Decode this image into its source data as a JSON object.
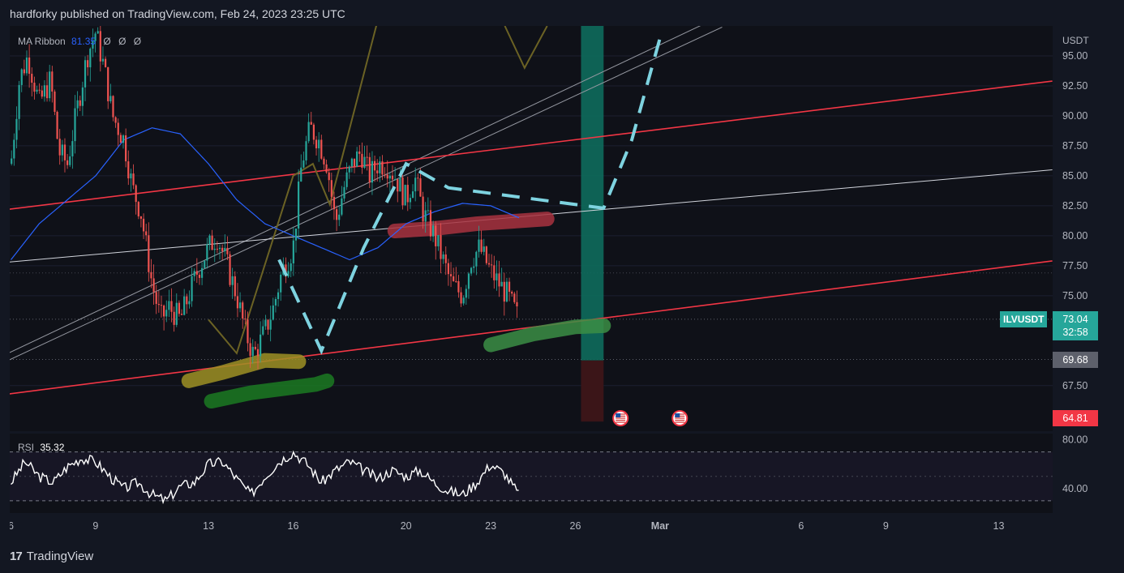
{
  "header": {
    "text": "hardforky published on TradingView.com, Feb 24, 2023 23:25 UTC"
  },
  "footer": {
    "brand": "TradingView",
    "logo": "17"
  },
  "indicators": {
    "ma_ribbon": {
      "name": "MA Ribbon",
      "value": "81.35",
      "extras": [
        "Ø",
        "Ø",
        "Ø"
      ]
    },
    "rsi": {
      "name": "RSI",
      "value": "35.32"
    }
  },
  "price_axis": {
    "currency": "USDT",
    "ticks": [
      "95.00",
      "92.50",
      "90.00",
      "87.50",
      "85.00",
      "82.50",
      "80.00",
      "77.50",
      "75.00",
      "67.50"
    ],
    "tick_values": [
      95,
      92.5,
      90,
      87.5,
      85,
      82.5,
      80,
      77.5,
      75,
      67.5
    ]
  },
  "price_labels": {
    "symbol": "ILVUSDT",
    "current": "73.04",
    "countdown": "32:58",
    "level_gray": "69.68",
    "level_red": "64.81"
  },
  "rsi_axis": {
    "ticks": [
      "80.00",
      "40.00"
    ],
    "tick_values": [
      80,
      40
    ]
  },
  "time_axis": {
    "labels": [
      "6",
      "9",
      "13",
      "16",
      "20",
      "23",
      "26",
      "Mar",
      "6",
      "9",
      "13"
    ],
    "day_index": [
      0,
      3,
      7,
      10,
      14,
      17,
      20,
      23,
      28,
      31,
      35
    ]
  },
  "colors": {
    "background": "#131722",
    "candle_up": "#26a69a",
    "candle_down": "#ef5350",
    "ma": "#2962ff",
    "trend_red": "#f23645",
    "rsi_line": "#ffffff",
    "dash": "#7ed3e0",
    "green_box": "#0e6b5c"
  },
  "chart_data": {
    "type": "candlestick",
    "symbol": "ILVUSDT",
    "x_unit": "day (Feb 6 = 0)",
    "ylim": [
      63.7,
      97.5
    ],
    "close_path": [
      [
        0,
        86
      ],
      [
        0.3,
        93
      ],
      [
        0.6,
        95
      ],
      [
        1,
        91
      ],
      [
        1.4,
        93
      ],
      [
        1.7,
        87
      ],
      [
        2,
        86
      ],
      [
        2.3,
        90
      ],
      [
        2.7,
        95
      ],
      [
        3,
        97
      ],
      [
        3.3,
        94
      ],
      [
        3.6,
        90
      ],
      [
        4,
        88
      ],
      [
        4.3,
        84
      ],
      [
        4.6,
        82
      ],
      [
        5,
        76
      ],
      [
        5.3,
        73
      ],
      [
        5.6,
        74
      ],
      [
        6,
        73
      ],
      [
        6.3,
        75
      ],
      [
        6.6,
        77
      ],
      [
        7,
        79
      ],
      [
        7.3,
        80
      ],
      [
        7.6,
        78
      ],
      [
        8,
        75
      ],
      [
        8.3,
        72
      ],
      [
        8.6,
        70
      ],
      [
        9,
        72
      ],
      [
        9.3,
        74
      ],
      [
        9.6,
        77
      ],
      [
        10,
        79
      ],
      [
        10.3,
        86
      ],
      [
        10.6,
        89
      ],
      [
        10.9,
        88
      ],
      [
        11.2,
        86
      ],
      [
        11.5,
        81
      ],
      [
        11.8,
        84
      ],
      [
        12.1,
        86
      ],
      [
        12.4,
        87
      ],
      [
        12.7,
        85
      ],
      [
        13,
        86
      ],
      [
        13.3,
        86
      ],
      [
        13.6,
        85
      ],
      [
        14,
        83
      ],
      [
        14.3,
        85
      ],
      [
        14.6,
        82
      ],
      [
        15,
        80
      ],
      [
        15.3,
        78
      ],
      [
        15.6,
        76
      ],
      [
        16,
        75
      ],
      [
        16.3,
        78
      ],
      [
        16.6,
        79
      ],
      [
        17,
        77
      ],
      [
        17.3,
        76
      ],
      [
        17.6,
        75
      ],
      [
        18,
        73
      ]
    ],
    "ma_ribbon": {
      "value": 81.35,
      "path": [
        [
          0,
          78
        ],
        [
          1,
          81
        ],
        [
          2,
          83
        ],
        [
          3,
          85
        ],
        [
          4,
          88
        ],
        [
          5,
          89
        ],
        [
          6,
          88.5
        ],
        [
          7,
          86
        ],
        [
          8,
          83
        ],
        [
          9,
          81
        ],
        [
          10,
          80
        ],
        [
          11,
          79
        ],
        [
          12,
          78
        ],
        [
          13,
          79
        ],
        [
          14,
          81
        ],
        [
          15,
          82
        ],
        [
          16,
          82.7
        ],
        [
          17,
          82.5
        ],
        [
          18,
          81.5
        ]
      ]
    },
    "rsi": {
      "value": 35.32,
      "levels": [
        70,
        30
      ],
      "ylim": [
        20,
        85
      ],
      "path": [
        [
          0,
          45
        ],
        [
          0.5,
          62
        ],
        [
          1,
          50
        ],
        [
          1.5,
          45
        ],
        [
          2,
          58
        ],
        [
          2.5,
          65
        ],
        [
          3,
          62
        ],
        [
          3.5,
          50
        ],
        [
          4,
          40
        ],
        [
          4.5,
          45
        ],
        [
          5,
          35
        ],
        [
          5.5,
          30
        ],
        [
          6,
          42
        ],
        [
          6.5,
          45
        ],
        [
          7,
          60
        ],
        [
          7.5,
          62
        ],
        [
          8,
          48
        ],
        [
          8.5,
          35
        ],
        [
          9,
          50
        ],
        [
          9.5,
          62
        ],
        [
          10,
          70
        ],
        [
          10.5,
          60
        ],
        [
          11,
          45
        ],
        [
          11.5,
          55
        ],
        [
          12,
          62
        ],
        [
          12.5,
          55
        ],
        [
          13,
          48
        ],
        [
          13.5,
          55
        ],
        [
          14,
          50
        ],
        [
          14.5,
          55
        ],
        [
          15,
          45
        ],
        [
          15.5,
          38
        ],
        [
          16,
          35
        ],
        [
          16.5,
          45
        ],
        [
          17,
          60
        ],
        [
          17.5,
          52
        ],
        [
          18,
          35
        ]
      ]
    },
    "levels": [
      {
        "label": "69.68",
        "value": 69.68,
        "style": "dotted"
      },
      {
        "label": "73.04",
        "value": 73.04,
        "style": "dotted"
      }
    ],
    "drawings": {
      "red_channel_upper": [
        [
          -0.1,
          82.2
        ],
        [
          36.9,
          92.9
        ]
      ],
      "red_channel_lower": [
        [
          -0.1,
          66.8
        ],
        [
          36.9,
          77.9
        ]
      ],
      "red_line_lower": [
        [
          -0.1,
          69.1
        ],
        [
          20,
          73.2
        ]
      ],
      "white_line": [
        [
          -0.1,
          77.8
        ],
        [
          36.9,
          85.5
        ]
      ],
      "white_channel_a": [
        [
          -0.1,
          70.2
        ],
        [
          24.5,
          97.6
        ]
      ],
      "white_channel_b": [
        [
          -0.1,
          69.6
        ],
        [
          25.2,
          97.4
        ]
      ],
      "green_box": {
        "x": [
          20.2,
          21
        ],
        "top": 97.5,
        "split": 69.6,
        "bottom": 64.5
      },
      "event_icons_x": [
        21.6,
        23.7
      ]
    }
  }
}
